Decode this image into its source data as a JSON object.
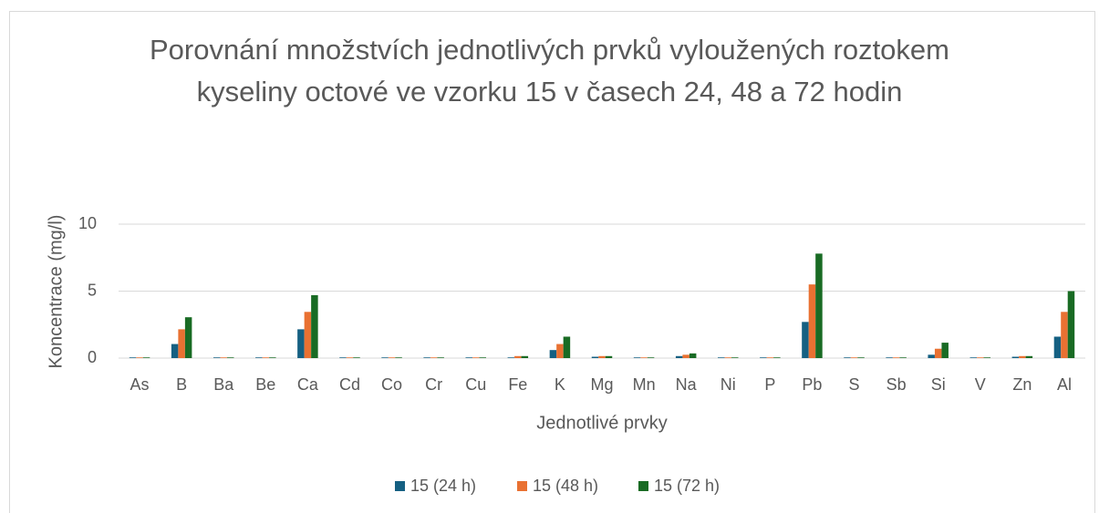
{
  "chart_data": {
    "type": "bar",
    "title": "Porovnání množstvích jednotlivých prvků vyloužených roztokem kyseliny octové ve vzorku 15 v časech 24, 48 a 72 hodin",
    "xlabel": "Jednotlivé prvky",
    "ylabel": "Koncentrace (mg/l)",
    "categories": [
      "As",
      "B",
      "Ba",
      "Be",
      "Ca",
      "Cd",
      "Co",
      "Cr",
      "Cu",
      "Fe",
      "K",
      "Mg",
      "Mn",
      "Na",
      "Ni",
      "P",
      "Pb",
      "S",
      "Sb",
      "Si",
      "V",
      "Zn",
      "Al"
    ],
    "series": [
      {
        "name": "15 (24 h)",
        "color": "#156082",
        "values": [
          0.05,
          1.05,
          0.05,
          0.05,
          2.15,
          0.05,
          0.05,
          0.05,
          0.05,
          0.05,
          0.6,
          0.1,
          0.05,
          0.15,
          0.05,
          0.05,
          2.7,
          0.05,
          0.05,
          0.25,
          0.05,
          0.1,
          1.6
        ]
      },
      {
        "name": "15 (48 h)",
        "color": "#E97132",
        "values": [
          0.05,
          2.15,
          0.05,
          0.05,
          3.45,
          0.05,
          0.05,
          0.05,
          0.05,
          0.15,
          1.05,
          0.15,
          0.05,
          0.25,
          0.05,
          0.05,
          5.5,
          0.05,
          0.05,
          0.7,
          0.05,
          0.15,
          3.45
        ]
      },
      {
        "name": "15 (72 h)",
        "color": "#196B24",
        "values": [
          0.05,
          3.05,
          0.05,
          0.05,
          4.7,
          0.05,
          0.05,
          0.05,
          0.05,
          0.15,
          1.6,
          0.15,
          0.05,
          0.35,
          0.05,
          0.05,
          7.8,
          0.05,
          0.05,
          1.15,
          0.05,
          0.15,
          5.0
        ]
      }
    ],
    "ylim": [
      0,
      10
    ],
    "yticks": [
      0,
      5,
      10
    ],
    "grid": true,
    "legend": "bottom"
  }
}
